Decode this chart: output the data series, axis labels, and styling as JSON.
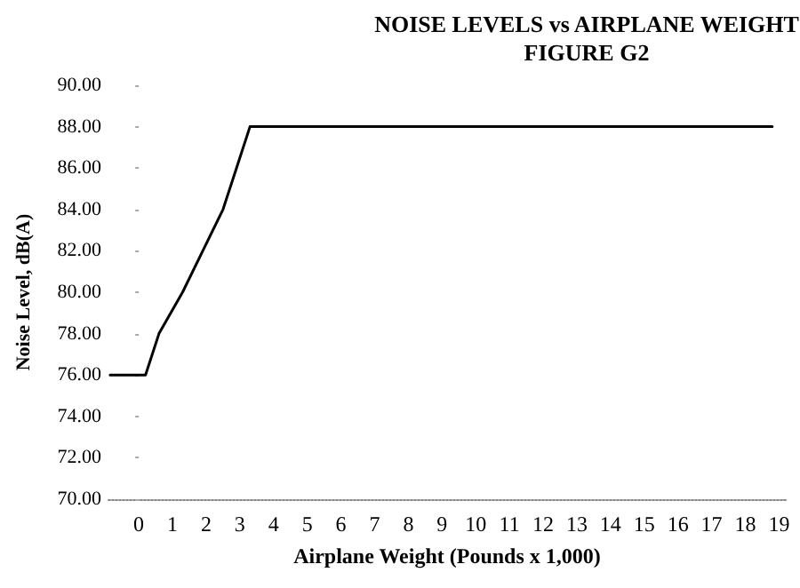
{
  "chart_data": {
    "type": "line",
    "title": "NOISE LEVELS vs AIRPLANE WEIGHT",
    "subtitle": "FIGURE G2",
    "xlabel": "Airplane Weight (Pounds x 1,000)",
    "ylabel": "Noise Level, dB(A)",
    "series": [
      {
        "color": "#000000",
        "x": [
          -0.85,
          0.2,
          0.6,
          1.3,
          1.9,
          2.5,
          2.9,
          3.3,
          18.8
        ],
        "values": [
          76,
          76,
          78,
          80,
          82,
          84,
          86,
          88,
          88
        ]
      }
    ],
    "xlim": [
      -0.9,
      19.2
    ],
    "xticks": [
      0,
      1,
      2,
      3,
      4,
      5,
      6,
      7,
      8,
      9,
      10,
      11,
      12,
      13,
      14,
      15,
      16,
      17,
      18,
      19
    ],
    "ylim": [
      70,
      90
    ],
    "yticks": [
      {
        "value": 70,
        "label": "70.00"
      },
      {
        "value": 72,
        "label": "72.00"
      },
      {
        "value": 74,
        "label": "74.00"
      },
      {
        "value": 76,
        "label": "76.00"
      },
      {
        "value": 78,
        "label": "78.00"
      },
      {
        "value": 80,
        "label": "80.00"
      },
      {
        "value": 82,
        "label": "82.00"
      },
      {
        "value": 84,
        "label": "84.00"
      },
      {
        "value": 86,
        "label": "86.00"
      },
      {
        "value": 88,
        "label": "88.00"
      },
      {
        "value": 90,
        "label": "90.00"
      }
    ],
    "marker": "none",
    "line_style": "solid"
  }
}
